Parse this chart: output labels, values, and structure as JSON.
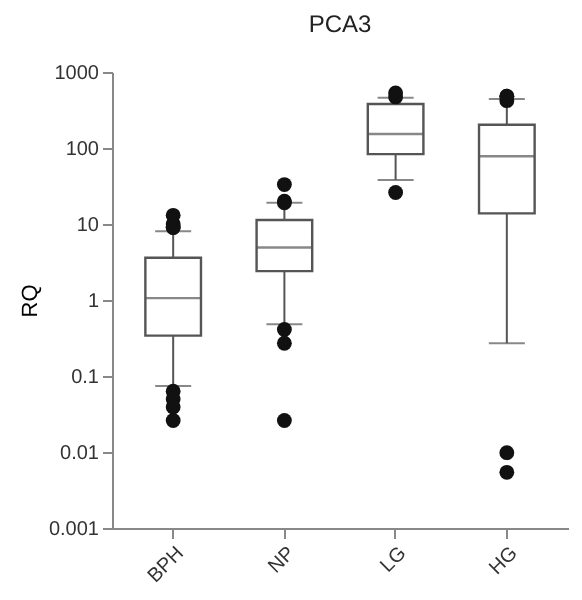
{
  "chart_data": {
    "type": "box",
    "title": "PCA3",
    "ylabel": "RQ",
    "categories": [
      "BPH",
      "NP",
      "LG",
      "HG"
    ],
    "log": true,
    "ylim": [
      0.001,
      1000
    ],
    "yticks": [
      0.001,
      0.01,
      0.1,
      1,
      10,
      100,
      1000
    ],
    "grid": false,
    "color": "#555555",
    "marker": "circle",
    "boxes": [
      {
        "low": 0.074,
        "q1": 0.34,
        "median": 1.06,
        "q3": 3.6,
        "high": 8,
        "outliers": [
          10,
          9,
          9,
          13,
          0.063,
          0.05,
          0.039,
          0.026
        ]
      },
      {
        "low": 0.48,
        "q1": 2.4,
        "median": 4.9,
        "q3": 11.3,
        "high": 19,
        "outliers": [
          33,
          20,
          19,
          0.41,
          0.27,
          0.026
        ]
      },
      {
        "low": 38,
        "q1": 83,
        "median": 153,
        "q3": 380,
        "high": 460,
        "outliers": [
          530,
          470,
          26
        ]
      },
      {
        "low": 0.27,
        "q1": 13.8,
        "median": 78,
        "q3": 202,
        "high": 440,
        "outliers": [
          480,
          420,
          480,
          0.0098,
          0.0054
        ]
      }
    ]
  }
}
